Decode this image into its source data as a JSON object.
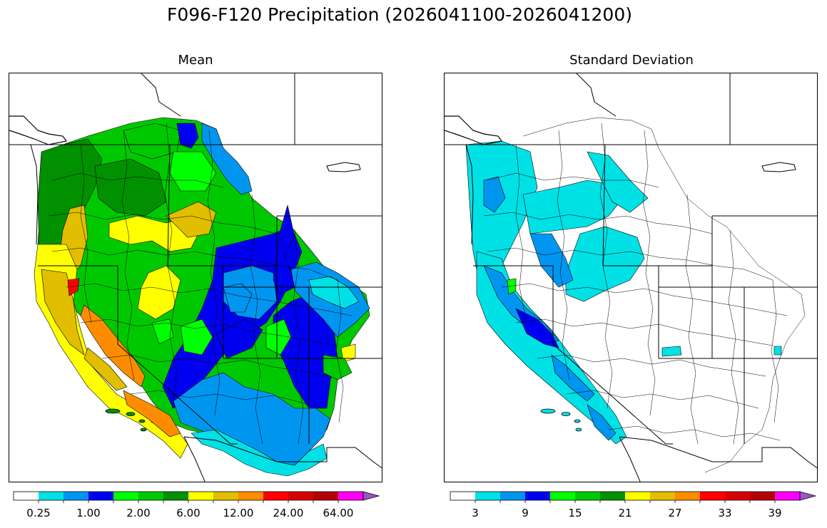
{
  "figure": {
    "title": "F096-F120 Precipitation (2026041100-2026041200)"
  },
  "panels": [
    {
      "title": "Mean",
      "colorbar": {
        "colors": [
          "#ffffff",
          "#00e1e6",
          "#0096f0",
          "#0000f0",
          "#00ff00",
          "#00c800",
          "#009000",
          "#ffff00",
          "#e1be00",
          "#ff8c00",
          "#ff0000",
          "#d70000",
          "#b40000",
          "#ff00ff",
          "#9d54c8"
        ],
        "tick_labels": [
          "0.25",
          "1.00",
          "2.00",
          "6.00",
          "12.00",
          "24.00",
          "64.00"
        ],
        "extend": "max"
      }
    },
    {
      "title": "Standard Deviation",
      "colorbar": {
        "colors": [
          "#ffffff",
          "#00e1e6",
          "#0096f0",
          "#0000f0",
          "#00ff00",
          "#00c800",
          "#009000",
          "#ffff00",
          "#e1be00",
          "#ff8c00",
          "#ff0000",
          "#d70000",
          "#b40000",
          "#ff00ff",
          "#9d54c8"
        ],
        "tick_labels": [
          "3",
          "9",
          "15",
          "21",
          "27",
          "33",
          "39"
        ],
        "extend": "max"
      }
    }
  ]
}
